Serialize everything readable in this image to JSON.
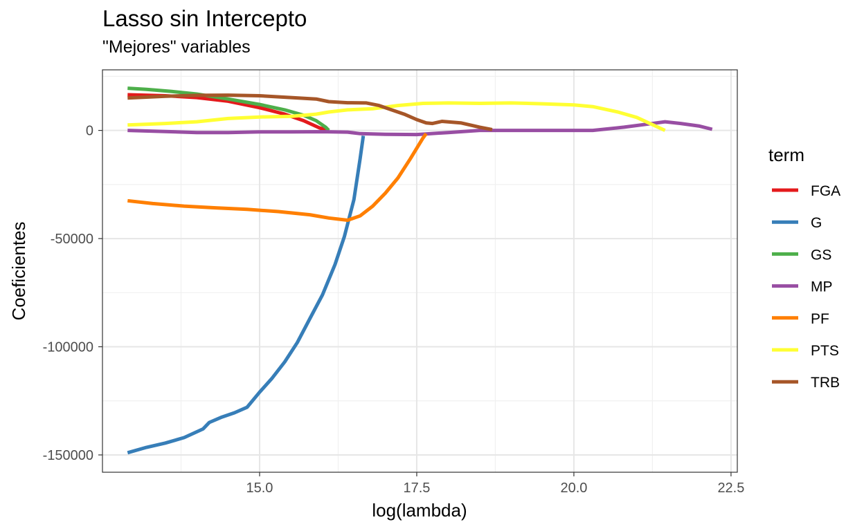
{
  "chart_data": {
    "type": "line",
    "title": "Lasso sin Intercepto",
    "subtitle": "\"Mejores\" variables",
    "xlabel": "log(lambda)",
    "ylabel": "Coeficientes",
    "xlim": [
      12.5,
      22.6
    ],
    "ylim": [
      -158000,
      28000
    ],
    "x_ticks": [
      15.0,
      17.5,
      20.0,
      22.5
    ],
    "x_tick_labels": [
      "15.0",
      "17.5",
      "20.0",
      "22.5"
    ],
    "y_ticks": [
      0,
      -50000,
      -100000,
      -150000
    ],
    "y_tick_labels": [
      "0",
      "-50000",
      "-100000",
      "-150000"
    ],
    "grid": true,
    "legend_title": "term",
    "legend_position": "right",
    "series": [
      {
        "name": "FGA",
        "color": "#E41A1C",
        "points": [
          [
            12.9,
            16500
          ],
          [
            13.5,
            16000
          ],
          [
            14.0,
            15200
          ],
          [
            14.5,
            13500
          ],
          [
            15.0,
            10500
          ],
          [
            15.4,
            7500
          ],
          [
            15.7,
            4500
          ],
          [
            15.95,
            1200
          ],
          [
            16.1,
            0
          ]
        ]
      },
      {
        "name": "G",
        "color": "#377EB8",
        "points": [
          [
            12.9,
            -149000
          ],
          [
            13.2,
            -146500
          ],
          [
            13.5,
            -144500
          ],
          [
            13.8,
            -142000
          ],
          [
            14.1,
            -138000
          ],
          [
            14.2,
            -135000
          ],
          [
            14.4,
            -132500
          ],
          [
            14.6,
            -130500
          ],
          [
            14.8,
            -128000
          ],
          [
            15.0,
            -121000
          ],
          [
            15.2,
            -114500
          ],
          [
            15.4,
            -107000
          ],
          [
            15.6,
            -98000
          ],
          [
            15.8,
            -87000
          ],
          [
            16.0,
            -76000
          ],
          [
            16.2,
            -62000
          ],
          [
            16.35,
            -49000
          ],
          [
            16.5,
            -32000
          ],
          [
            16.6,
            -13000
          ],
          [
            16.65,
            -2500
          ]
        ]
      },
      {
        "name": "GS",
        "color": "#4DAF4A",
        "points": [
          [
            12.9,
            19500
          ],
          [
            13.2,
            19000
          ],
          [
            13.6,
            18000
          ],
          [
            14.0,
            16800
          ],
          [
            14.5,
            14500
          ],
          [
            15.0,
            12000
          ],
          [
            15.4,
            9500
          ],
          [
            15.7,
            7000
          ],
          [
            15.9,
            4500
          ],
          [
            16.05,
            1500
          ],
          [
            16.1,
            0
          ]
        ]
      },
      {
        "name": "MP",
        "color": "#984EA3",
        "points": [
          [
            12.9,
            0
          ],
          [
            13.5,
            -500
          ],
          [
            14.0,
            -1000
          ],
          [
            14.5,
            -1000
          ],
          [
            15.0,
            -700
          ],
          [
            15.5,
            -700
          ],
          [
            16.0,
            -600
          ],
          [
            16.4,
            -800
          ],
          [
            16.6,
            -1500
          ],
          [
            17.0,
            -1800
          ],
          [
            17.5,
            -1900
          ],
          [
            18.0,
            -1000
          ],
          [
            18.5,
            0
          ],
          [
            19.0,
            0
          ],
          [
            19.5,
            0
          ],
          [
            20.3,
            0
          ],
          [
            20.8,
            1500
          ],
          [
            21.2,
            3000
          ],
          [
            21.45,
            4000
          ],
          [
            21.7,
            3200
          ],
          [
            22.0,
            2000
          ],
          [
            22.2,
            500
          ]
        ]
      },
      {
        "name": "PF",
        "color": "#FF7F00",
        "points": [
          [
            12.9,
            -32500
          ],
          [
            13.3,
            -33800
          ],
          [
            13.8,
            -35000
          ],
          [
            14.3,
            -35800
          ],
          [
            14.8,
            -36500
          ],
          [
            15.3,
            -37500
          ],
          [
            15.8,
            -39000
          ],
          [
            16.1,
            -40500
          ],
          [
            16.4,
            -41500
          ],
          [
            16.6,
            -39500
          ],
          [
            16.8,
            -35000
          ],
          [
            17.0,
            -29000
          ],
          [
            17.2,
            -22000
          ],
          [
            17.4,
            -13000
          ],
          [
            17.6,
            -3500
          ],
          [
            17.65,
            -1500
          ]
        ]
      },
      {
        "name": "PTS",
        "color": "#FFFF33",
        "points": [
          [
            12.9,
            2500
          ],
          [
            13.5,
            3200
          ],
          [
            14.0,
            4000
          ],
          [
            14.5,
            5500
          ],
          [
            15.0,
            6200
          ],
          [
            15.5,
            6500
          ],
          [
            15.9,
            7500
          ],
          [
            16.1,
            8500
          ],
          [
            16.4,
            9500
          ],
          [
            16.8,
            10000
          ],
          [
            17.2,
            11500
          ],
          [
            17.6,
            12500
          ],
          [
            18.0,
            12700
          ],
          [
            18.5,
            12500
          ],
          [
            19.0,
            12700
          ],
          [
            19.5,
            12300
          ],
          [
            20.0,
            11800
          ],
          [
            20.3,
            11000
          ],
          [
            20.7,
            8500
          ],
          [
            21.0,
            6000
          ],
          [
            21.3,
            2000
          ],
          [
            21.45,
            0
          ]
        ]
      },
      {
        "name": "TRB",
        "color": "#A65628",
        "points": [
          [
            12.9,
            15000
          ],
          [
            13.5,
            15800
          ],
          [
            14.0,
            16200
          ],
          [
            14.5,
            16300
          ],
          [
            15.0,
            16000
          ],
          [
            15.5,
            15200
          ],
          [
            15.9,
            14500
          ],
          [
            16.1,
            13300
          ],
          [
            16.4,
            12800
          ],
          [
            16.7,
            12700
          ],
          [
            16.9,
            11500
          ],
          [
            17.1,
            9500
          ],
          [
            17.3,
            7500
          ],
          [
            17.5,
            5000
          ],
          [
            17.65,
            3500
          ],
          [
            17.75,
            3200
          ],
          [
            17.9,
            4200
          ],
          [
            18.2,
            3500
          ],
          [
            18.5,
            1500
          ],
          [
            18.7,
            400
          ]
        ]
      }
    ]
  }
}
